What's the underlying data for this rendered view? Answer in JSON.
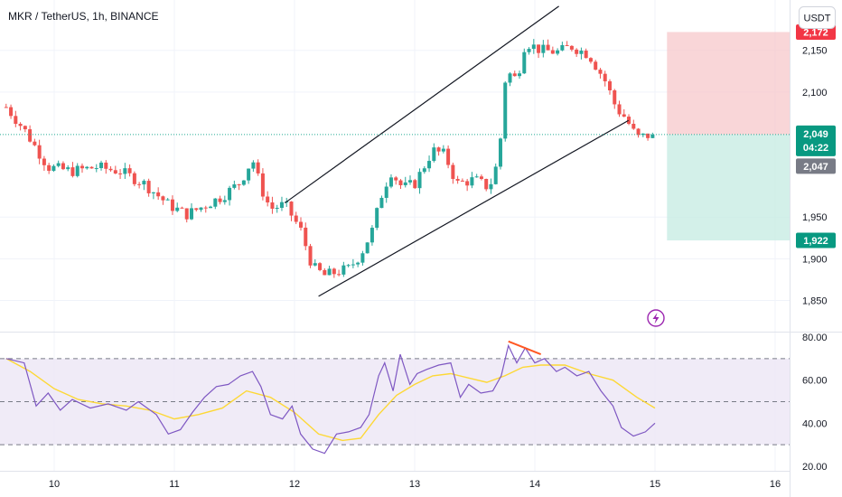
{
  "header": {
    "title": "MKR / TetherUS, 1h, BINANCE",
    "currency_button": "USDT"
  },
  "colors": {
    "up": "#26a69a",
    "down": "#ef5350",
    "current_price": "#22ab94",
    "stop_zone": "#f7c5c8",
    "target_zone": "#c8ece3",
    "stop_tag": "#f23645",
    "target_tag": "#089981",
    "alt_tag": "#787b86",
    "rsi_line": "#7e57c2",
    "rsi_ma": "#fdd835",
    "rsi_band": "#ede7f6",
    "divergence": "#ff5722",
    "flash": "#9c27b0"
  },
  "chart_data": [
    {
      "type": "candlestick",
      "title": "MKR / TetherUS, 1h, BINANCE",
      "x_ticks": [
        {
          "label": "10",
          "day": 10
        },
        {
          "label": "11",
          "day": 11
        },
        {
          "label": "12",
          "day": 12
        },
        {
          "label": "13",
          "day": 13
        },
        {
          "label": "14",
          "day": 14
        },
        {
          "label": "15",
          "day": 15
        },
        {
          "label": "16",
          "day": 16
        }
      ],
      "xlim_days": [
        9.6,
        16.2
      ],
      "ylim": [
        1818,
        2205
      ],
      "y_ticks": [
        {
          "label": "2,150",
          "value": 2150
        },
        {
          "label": "2,100",
          "value": 2100
        },
        {
          "label": "1,950",
          "value": 1950
        },
        {
          "label": "1,900",
          "value": 1900
        },
        {
          "label": "1,850",
          "value": 1850
        }
      ],
      "path": [
        [
          9.6,
          2082
        ],
        [
          9.75,
          2055
        ],
        [
          9.95,
          2010
        ],
        [
          10.15,
          2005
        ],
        [
          10.35,
          2010
        ],
        [
          10.55,
          2005
        ],
        [
          10.75,
          1990
        ],
        [
          10.95,
          1965
        ],
        [
          11.1,
          1953
        ],
        [
          11.2,
          1960
        ],
        [
          11.4,
          1975
        ],
        [
          11.55,
          1992
        ],
        [
          11.65,
          2020
        ],
        [
          11.72,
          1985
        ],
        [
          11.8,
          1960
        ],
        [
          11.92,
          1965
        ],
        [
          12.05,
          1935
        ],
        [
          12.15,
          1890
        ],
        [
          12.25,
          1880
        ],
        [
          12.45,
          1888
        ],
        [
          12.55,
          1905
        ],
        [
          12.65,
          1935
        ],
        [
          12.72,
          1975
        ],
        [
          12.8,
          2005
        ],
        [
          12.9,
          1985
        ],
        [
          13.0,
          1990
        ],
        [
          13.15,
          2030
        ],
        [
          13.25,
          2025
        ],
        [
          13.35,
          1990
        ],
        [
          13.5,
          1995
        ],
        [
          13.62,
          1985
        ],
        [
          13.7,
          2020
        ],
        [
          13.76,
          2125
        ],
        [
          13.85,
          2115
        ],
        [
          13.92,
          2160
        ],
        [
          14.05,
          2150
        ],
        [
          14.2,
          2148
        ],
        [
          14.3,
          2155
        ],
        [
          14.45,
          2145
        ],
        [
          14.58,
          2115
        ],
        [
          14.68,
          2080
        ],
        [
          14.75,
          2070
        ],
        [
          14.85,
          2045
        ],
        [
          14.98,
          2049
        ]
      ],
      "bars_count": 137,
      "trend_channel": {
        "upper": [
          [
            11.92,
            1967
          ],
          [
            14.2,
            2203
          ]
        ],
        "lower": [
          [
            12.2,
            1855
          ],
          [
            14.78,
            2066
          ]
        ]
      },
      "current_price": {
        "value": 2049,
        "label": "2,049",
        "countdown": "04:22"
      },
      "alt_price": {
        "value": 2047,
        "label": "2,047"
      },
      "position": {
        "entry": 2049,
        "stop": 2172,
        "stop_label": "2,172",
        "target": 1922,
        "target_label": "1,922",
        "start_day": 15.1,
        "end_day": 16.2
      }
    },
    {
      "type": "line",
      "ylim": [
        20,
        80
      ],
      "y_ticks": [
        {
          "label": "80.00",
          "value": 80
        },
        {
          "label": "60.00",
          "value": 60
        },
        {
          "label": "40.00",
          "value": 40
        },
        {
          "label": "20.00",
          "value": 20
        }
      ],
      "bands": {
        "upper": 70,
        "middle": 50,
        "lower": 30
      },
      "rsi": [
        [
          9.6,
          70
        ],
        [
          9.75,
          68
        ],
        [
          9.85,
          48
        ],
        [
          9.95,
          54
        ],
        [
          10.05,
          46
        ],
        [
          10.15,
          51
        ],
        [
          10.3,
          47
        ],
        [
          10.45,
          49
        ],
        [
          10.6,
          46
        ],
        [
          10.7,
          50
        ],
        [
          10.85,
          44
        ],
        [
          10.95,
          35
        ],
        [
          11.05,
          37
        ],
        [
          11.15,
          45
        ],
        [
          11.25,
          52
        ],
        [
          11.35,
          57
        ],
        [
          11.45,
          58
        ],
        [
          11.55,
          62
        ],
        [
          11.65,
          64
        ],
        [
          11.72,
          57
        ],
        [
          11.8,
          44
        ],
        [
          11.9,
          42
        ],
        [
          11.98,
          48
        ],
        [
          12.05,
          35
        ],
        [
          12.15,
          28
        ],
        [
          12.25,
          26
        ],
        [
          12.35,
          35
        ],
        [
          12.45,
          36
        ],
        [
          12.55,
          38
        ],
        [
          12.62,
          44
        ],
        [
          12.7,
          62
        ],
        [
          12.75,
          68
        ],
        [
          12.82,
          55
        ],
        [
          12.88,
          72
        ],
        [
          12.96,
          58
        ],
        [
          13.02,
          63
        ],
        [
          13.1,
          65
        ],
        [
          13.2,
          67
        ],
        [
          13.3,
          68
        ],
        [
          13.38,
          52
        ],
        [
          13.45,
          58
        ],
        [
          13.55,
          54
        ],
        [
          13.65,
          55
        ],
        [
          13.72,
          62
        ],
        [
          13.78,
          76
        ],
        [
          13.85,
          68
        ],
        [
          13.92,
          75
        ],
        [
          14.0,
          68
        ],
        [
          14.08,
          70
        ],
        [
          14.18,
          64
        ],
        [
          14.25,
          66
        ],
        [
          14.35,
          62
        ],
        [
          14.45,
          64
        ],
        [
          14.55,
          55
        ],
        [
          14.65,
          48
        ],
        [
          14.72,
          38
        ],
        [
          14.82,
          34
        ],
        [
          14.92,
          36
        ],
        [
          15.0,
          40
        ]
      ],
      "rsi_ma": [
        [
          9.6,
          70
        ],
        [
          9.8,
          64
        ],
        [
          10.0,
          56
        ],
        [
          10.2,
          51
        ],
        [
          10.4,
          49
        ],
        [
          10.6,
          48
        ],
        [
          10.8,
          46
        ],
        [
          11.0,
          42
        ],
        [
          11.2,
          44
        ],
        [
          11.4,
          47
        ],
        [
          11.6,
          55
        ],
        [
          11.8,
          52
        ],
        [
          12.0,
          45
        ],
        [
          12.2,
          35
        ],
        [
          12.4,
          32
        ],
        [
          12.55,
          33
        ],
        [
          12.7,
          44
        ],
        [
          12.85,
          53
        ],
        [
          13.0,
          58
        ],
        [
          13.15,
          62
        ],
        [
          13.3,
          63
        ],
        [
          13.45,
          61
        ],
        [
          13.6,
          59
        ],
        [
          13.75,
          62
        ],
        [
          13.9,
          66
        ],
        [
          14.05,
          67
        ],
        [
          14.25,
          67
        ],
        [
          14.45,
          63
        ],
        [
          14.65,
          60
        ],
        [
          14.85,
          52
        ],
        [
          15.0,
          47
        ]
      ],
      "divergence_line": [
        [
          13.78,
          78
        ],
        [
          14.05,
          72
        ]
      ]
    }
  ]
}
